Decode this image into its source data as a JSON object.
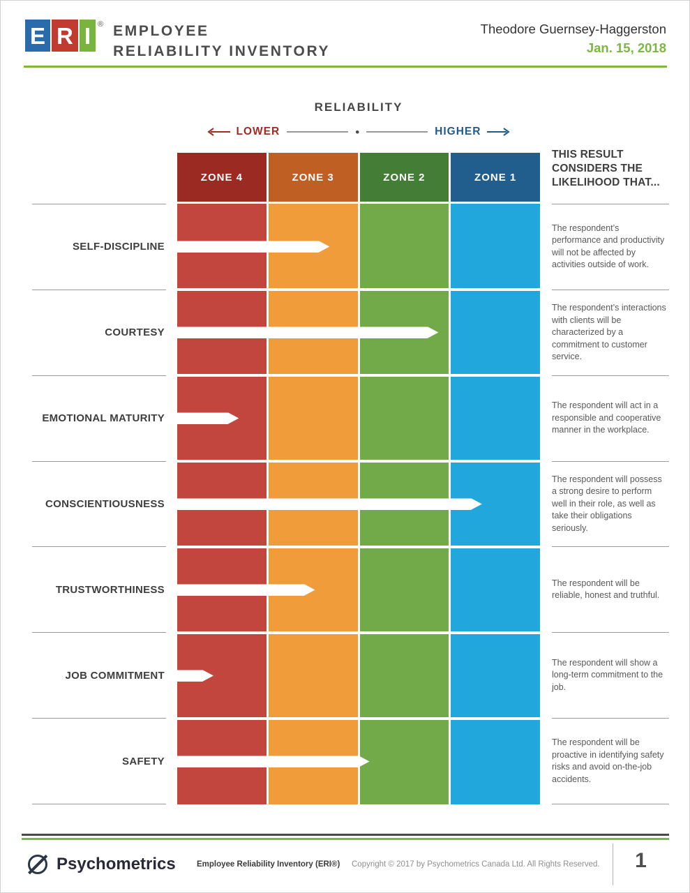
{
  "accent": {
    "green": "#7cb83e",
    "dark_line": "#4a4a4a",
    "rule_gray": "#9a9a9a"
  },
  "header": {
    "logo_tiles": [
      {
        "letter": "E",
        "color": "#2a6cab"
      },
      {
        "letter": "R",
        "color": "#c23b31"
      },
      {
        "letter": "I",
        "color": "#79b43f"
      }
    ],
    "registered_mark": "®",
    "title_line1": "EMPLOYEE",
    "title_line2": "RELIABILITY INVENTORY",
    "respondent_name": "Theodore Guernsey-Haggerston",
    "report_date": "Jan. 15, 2018"
  },
  "chart": {
    "title": "RELIABILITY",
    "axis": {
      "lower_label": "LOWER",
      "higher_label": "HIGHER",
      "lower_color": "#a02c22",
      "higher_color": "#1f5c8e",
      "separator_dot": "•"
    },
    "zones": [
      {
        "label": "ZONE 4",
        "header_color": "#9b2a23",
        "body_color": "#c2463d"
      },
      {
        "label": "ZONE 3",
        "header_color": "#c05f24",
        "body_color": "#f09c3b"
      },
      {
        "label": "ZONE 2",
        "header_color": "#447d36",
        "body_color": "#73aa49"
      },
      {
        "label": "ZONE 1",
        "header_color": "#215e8e",
        "body_color": "#22a7dc"
      }
    ],
    "result_header": "THIS RESULT CONSIDERS THE LIKELIHOOD THAT...",
    "descriptions": [
      "The respondent’s performance and productivity will not be affected by activities outside of work.",
      "The respondent’s interactions with clients will be characterized by a commitment to customer service.",
      "The respondent will act in a responsible and cooperative manner in the workplace.",
      "The respondent will possess a strong desire to perform well in their role, as well as take their obligations seriously.",
      "The respondent will be reliable, honest and truthful.",
      "The respondent will show a long-term commitment to the job.",
      "The respondent will be proactive in identifying safety risks and avoid on-the-job accidents."
    ]
  },
  "chart_data": {
    "type": "bar",
    "orientation": "horizontal",
    "title": "RELIABILITY",
    "categories": [
      "SELF-DISCIPLINE",
      "COURTESY",
      "EMOTIONAL MATURITY",
      "CONSCIENTIOUSNESS",
      "TRUSTWORTHINESS",
      "JOB COMMITMENT",
      "SAFETY"
    ],
    "values": [
      42,
      72,
      17,
      84,
      38,
      10,
      53
    ],
    "value_unit": "percent of reliability scale (0 = far left / lower, 100 = far right / higher)",
    "xlim": [
      0,
      100
    ],
    "axis_endpoint_labels": [
      "LOWER",
      "HIGHER"
    ],
    "zone_bands": [
      {
        "label": "ZONE 4",
        "range": [
          0,
          25
        ]
      },
      {
        "label": "ZONE 3",
        "range": [
          25,
          50
        ]
      },
      {
        "label": "ZONE 2",
        "range": [
          50,
          75
        ]
      },
      {
        "label": "ZONE 1",
        "range": [
          75,
          100
        ]
      }
    ],
    "category_result_zones": [
      "ZONE 3",
      "ZONE 2",
      "ZONE 4",
      "ZONE 1",
      "ZONE 3",
      "ZONE 4",
      "ZONE 2"
    ],
    "legend_position": "none",
    "grid": false
  },
  "footer": {
    "brand": "Psychometrics",
    "product": "Employee Reliability Inventory (ERI®)",
    "copyright": "Copyright © 2017 by Psychometrics Canada Ltd. All Rights Reserved.",
    "page_number": "1"
  }
}
